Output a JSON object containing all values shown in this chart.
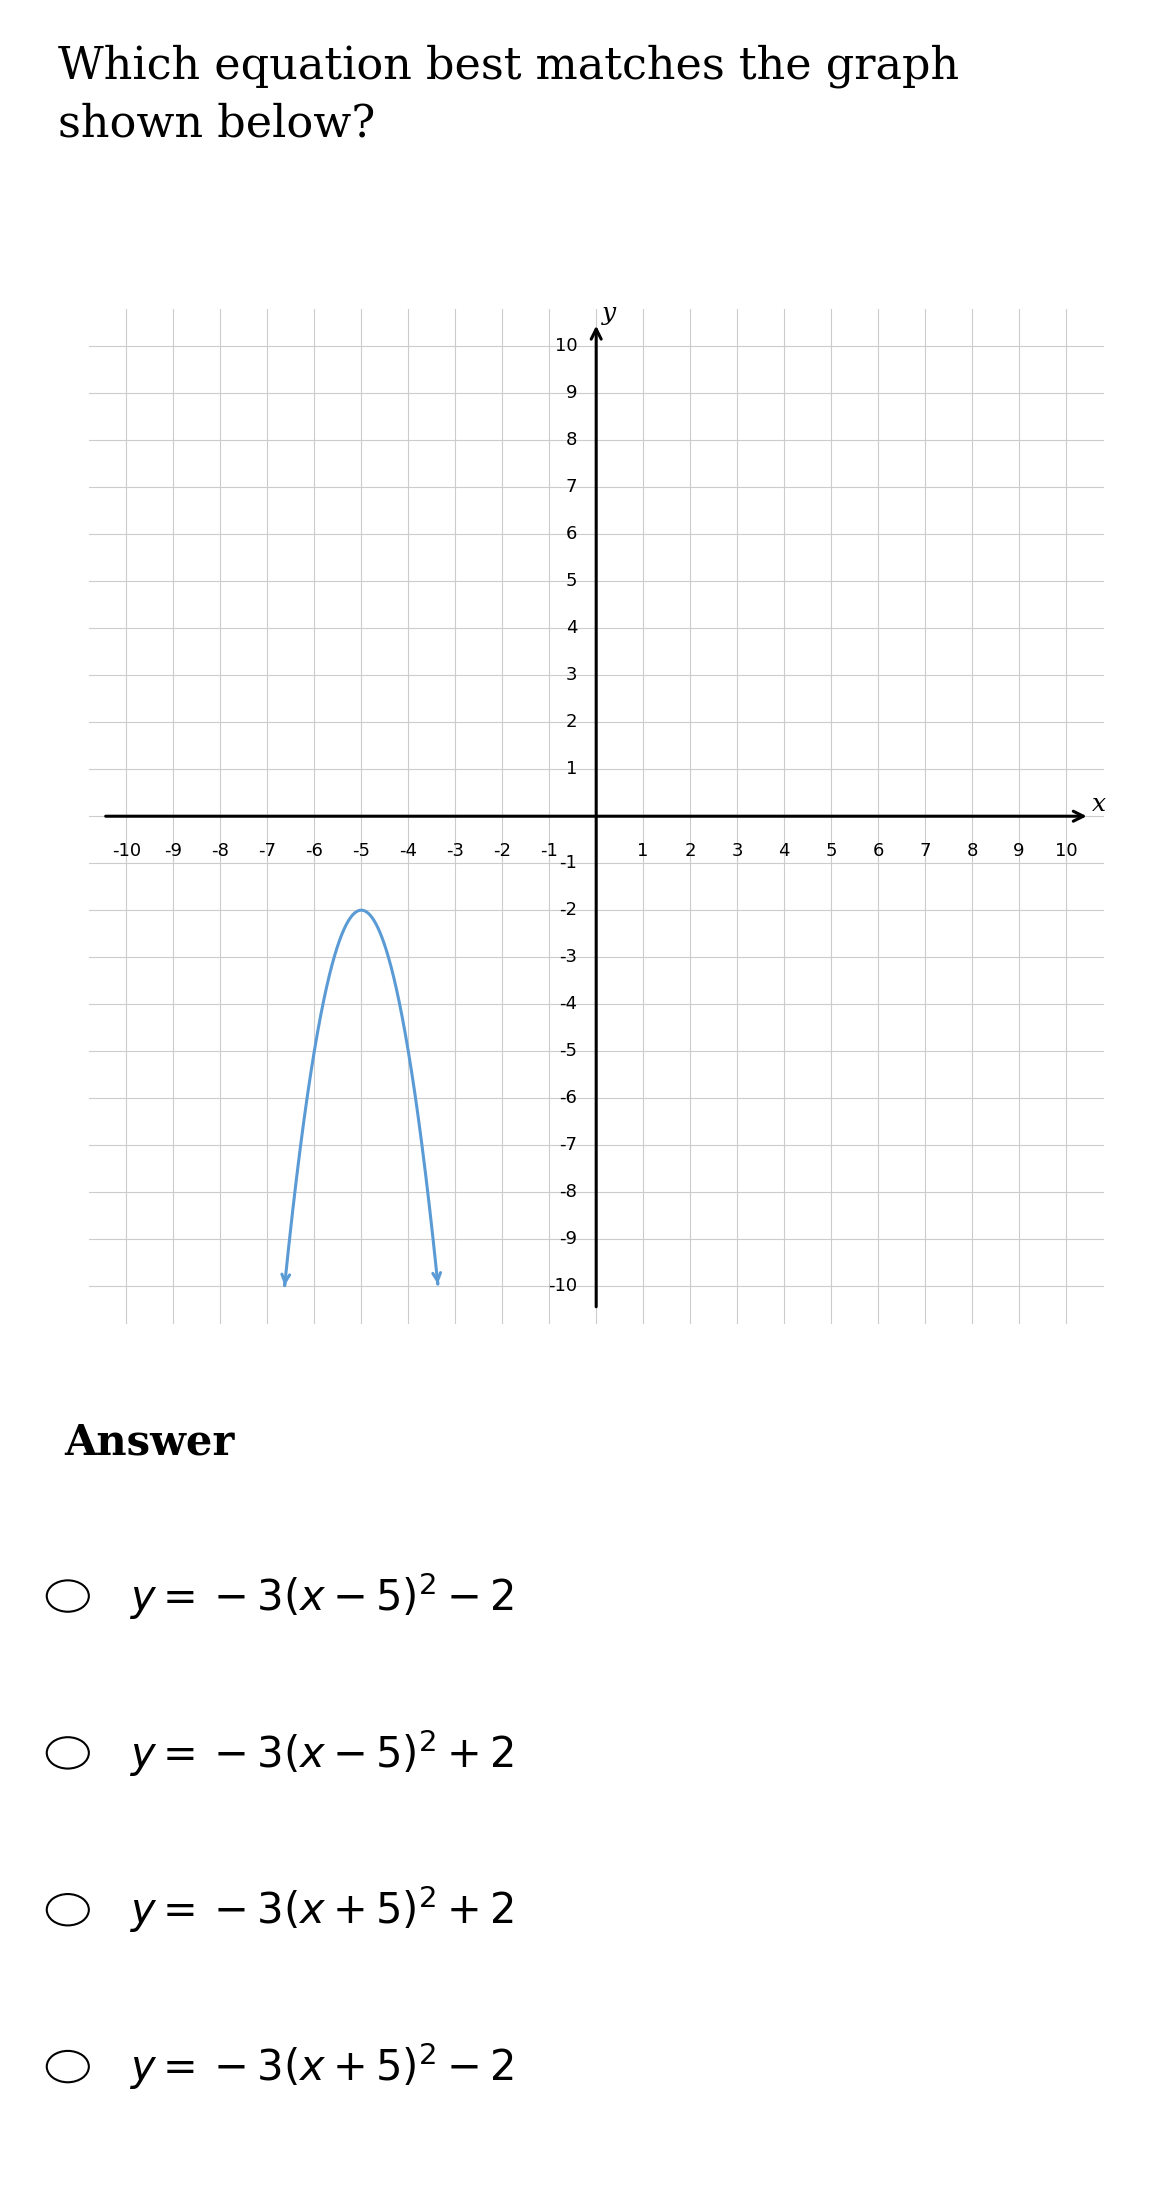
{
  "title_line1": "Which equation best matches the graph",
  "title_line2": "shown below?",
  "title_fontsize": 32,
  "curve_color": "#5b9bd5",
  "curve_linewidth": 2.2,
  "grid_color": "#cccccc",
  "grid_linewidth": 0.8,
  "axis_color": "#000000",
  "background_color": "#ffffff",
  "answer_bg_color": "#f0f0f5",
  "xlim": [
    -10,
    10
  ],
  "ylim": [
    -10,
    10
  ],
  "vertex_x": -5,
  "vertex_y": -2,
  "a": -3,
  "answer_label": "Answer",
  "answer_fontsize": 30,
  "choice_fontsize": 30,
  "tick_fontsize": 13,
  "axis_label_fontsize": 18
}
